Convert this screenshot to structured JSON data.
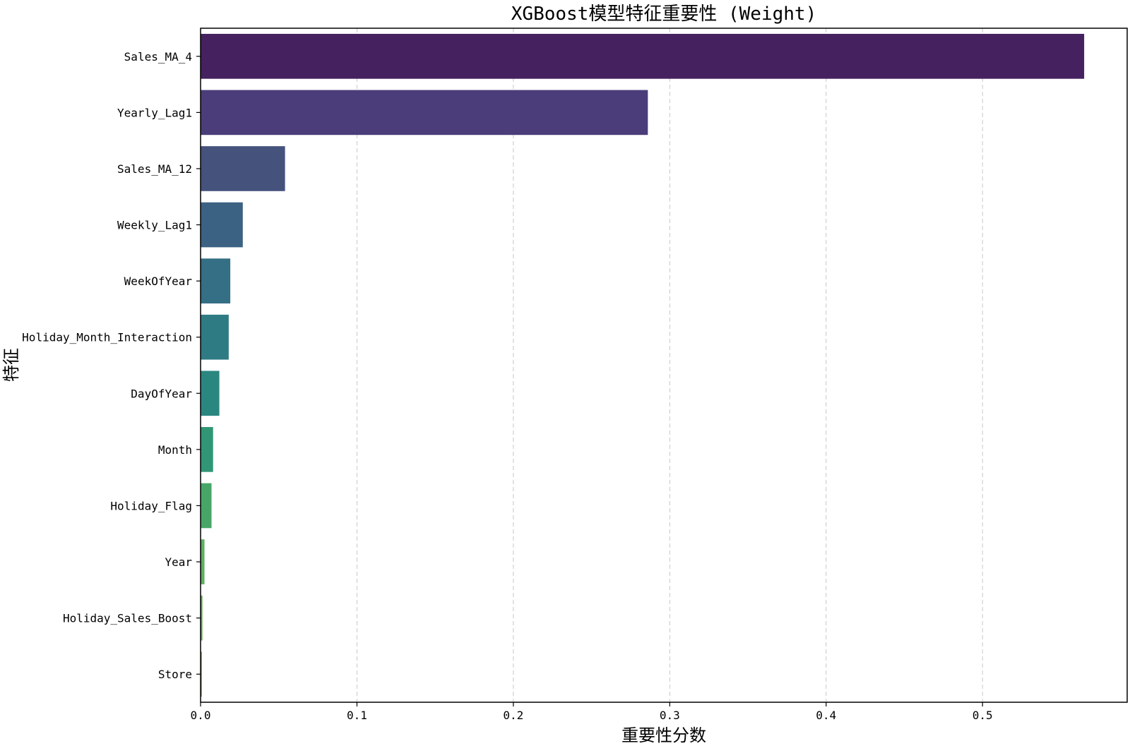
{
  "chart_data": {
    "type": "bar",
    "orientation": "horizontal",
    "title": "XGBoost模型特征重要性 (Weight)",
    "xlabel": "重要性分数",
    "ylabel": "特征",
    "categories": [
      "Sales_MA_4",
      "Yearly_Lag1",
      "Sales_MA_12",
      "Weekly_Lag1",
      "WeekOfYear",
      "Holiday_Month_Interaction",
      "DayOfYear",
      "Month",
      "Holiday_Flag",
      "Year",
      "Holiday_Sales_Boost",
      "Store"
    ],
    "values": [
      0.565,
      0.286,
      0.054,
      0.027,
      0.019,
      0.018,
      0.012,
      0.008,
      0.007,
      0.0025,
      0.0012,
      0.0008
    ],
    "xlim": [
      0,
      0.5925
    ],
    "xticks": [
      0.0,
      0.1,
      0.2,
      0.3,
      0.4,
      0.5
    ],
    "xtick_labels": [
      "0.0",
      "0.1",
      "0.2",
      "0.3",
      "0.4",
      "0.5"
    ],
    "grid": {
      "x": true,
      "y": false,
      "style": "dashed"
    },
    "colors": [
      "#45215f",
      "#4a3d79",
      "#45527c",
      "#3c6283",
      "#346f85",
      "#2e7b84",
      "#2a8780",
      "#319675",
      "#47a667",
      "#5db05f",
      "#6aac4e",
      "#809a35"
    ]
  }
}
